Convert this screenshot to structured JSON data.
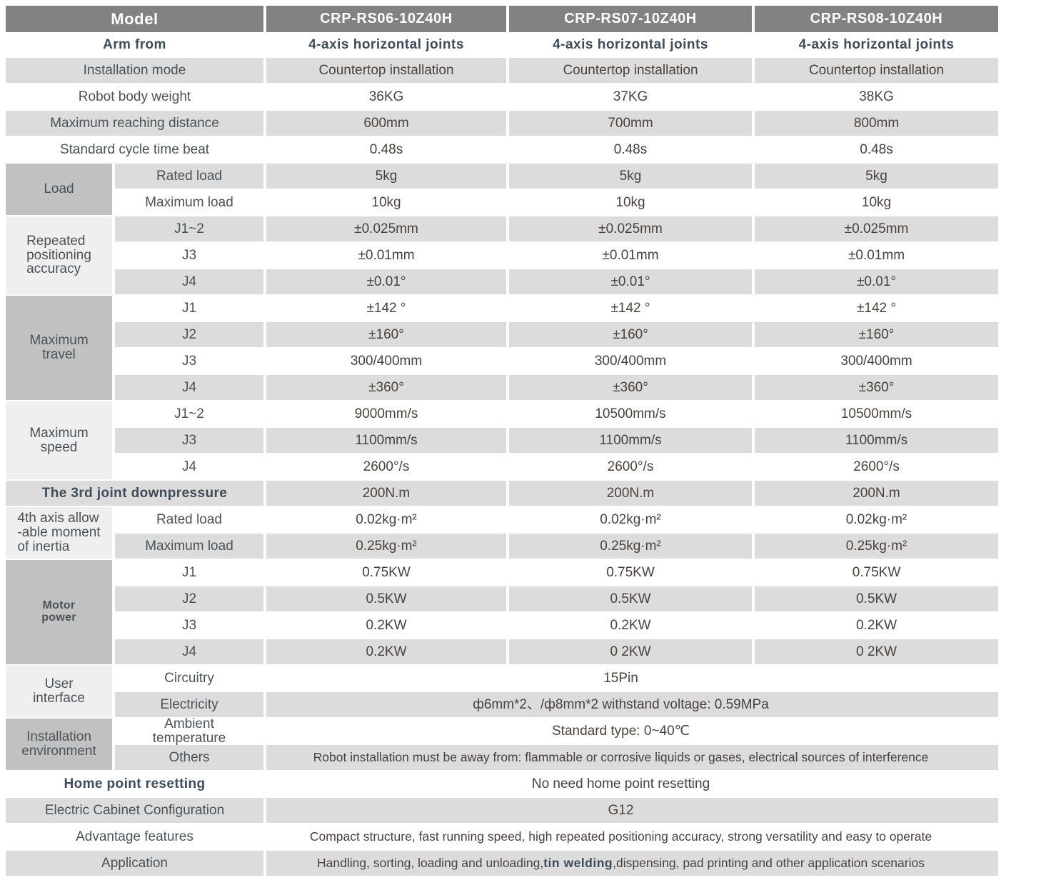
{
  "colors": {
    "header_bg": "#828282",
    "row_band": "#dcdcdc",
    "section_dark": "#c1c1c1",
    "section_light": "#efefef",
    "label_text": "#4b5257",
    "value_text": "#4a423f",
    "accent_text": "#3e4b58"
  },
  "table": {
    "model_label": "Model",
    "models": [
      "CRP-RS06-10Z40H",
      "CRP-RS07-10Z40H",
      "CRP-RS08-10Z40H"
    ],
    "rows": [
      {
        "label": "Arm from",
        "lb": true,
        "vb": true,
        "bg": "white",
        "values": [
          "4-axis horizontal joints",
          "4-axis horizontal joints",
          "4-axis horizontal joints"
        ]
      },
      {
        "label": "Installation mode",
        "bg": "gray",
        "values": [
          "Countertop installation",
          "Countertop installation",
          "Countertop installation"
        ]
      },
      {
        "label": "Robot body weight",
        "bg": "white",
        "values": [
          "36KG",
          "37KG",
          "38KG"
        ]
      },
      {
        "label": "Maximum reaching distance",
        "bg": "gray",
        "values": [
          "600mm",
          "700mm",
          "800mm"
        ]
      },
      {
        "label": "Standard cycle time beat",
        "bg": "white",
        "values": [
          "0.48s",
          "0.48s",
          "0.48s"
        ]
      },
      {
        "section": {
          "label": "Load",
          "tone": "dark",
          "span": 2
        },
        "sub": "Rated load",
        "bg": "gray",
        "values": [
          "5kg",
          "5kg",
          "5kg"
        ]
      },
      {
        "sub": "Maximum load",
        "bg": "white",
        "values": [
          "10kg",
          "10kg",
          "10kg"
        ]
      },
      {
        "section": {
          "label": "Repeated\npositioning\naccuracy",
          "tone": "light",
          "span": 3,
          "align": "left"
        },
        "sub": "J1~2",
        "bg": "gray",
        "values": [
          "±0.025mm",
          "±0.025mm",
          "±0.025mm"
        ]
      },
      {
        "sub": "J3",
        "bg": "white",
        "values": [
          "±0.01mm",
          "±0.01mm",
          "±0.01mm"
        ]
      },
      {
        "sub": "J4",
        "bg": "gray",
        "values": [
          "±0.01°",
          "±0.01°",
          "±0.01°"
        ]
      },
      {
        "section": {
          "label": "Maximum\ntravel",
          "tone": "dark",
          "span": 4
        },
        "sub": "J1",
        "bg": "white",
        "values": [
          "±142 °",
          "±142 °",
          "±142 °"
        ]
      },
      {
        "sub": "J2",
        "bg": "gray",
        "values": [
          "±160°",
          "±160°",
          "±160°"
        ]
      },
      {
        "sub": "J3",
        "bg": "white",
        "values": [
          "300/400mm",
          "300/400mm",
          "300/400mm"
        ]
      },
      {
        "sub": "J4",
        "bg": "gray",
        "values": [
          "±360°",
          "±360°",
          "±360°"
        ]
      },
      {
        "section": {
          "label": "Maximum\nspeed",
          "tone": "light",
          "span": 3
        },
        "sub": "J1~2",
        "bg": "white",
        "values": [
          "9000mm/s",
          "10500mm/s",
          "10500mm/s"
        ]
      },
      {
        "sub": "J3",
        "bg": "gray",
        "values": [
          "1100mm/s",
          "1100mm/s",
          "1100mm/s"
        ]
      },
      {
        "sub": "J4",
        "bg": "white",
        "values": [
          "2600°/s",
          "2600°/s",
          "2600°/s"
        ]
      },
      {
        "label": "The 3rd joint downpressure",
        "lb": true,
        "bg": "gray",
        "values": [
          "200N.m",
          "200N.m",
          "200N.m"
        ]
      },
      {
        "section": {
          "label": "4th axis allow\n-able moment\nof inertia",
          "tone": "light",
          "span": 2,
          "align": "left"
        },
        "sub": "Rated load",
        "bg": "white",
        "values": [
          "0.02kg·m²",
          "0.02kg·m²",
          "0.02kg·m²"
        ]
      },
      {
        "sub": "Maximum load",
        "bg": "gray",
        "values": [
          "0.25kg·m²",
          "0.25kg·m²",
          "0.25kg·m²"
        ]
      },
      {
        "section": {
          "label": "Motor\npower",
          "tone": "dark",
          "span": 4,
          "bold": true
        },
        "sub": "J1",
        "bg": "white",
        "values": [
          "0.75KW",
          "0.75KW",
          "0.75KW"
        ]
      },
      {
        "sub": "J2",
        "bg": "gray",
        "values": [
          "0.5KW",
          "0.5KW",
          "0.5KW"
        ]
      },
      {
        "sub": "J3",
        "bg": "white",
        "values": [
          "0.2KW",
          "0.2KW",
          "0.2KW"
        ]
      },
      {
        "sub": "J4",
        "bg": "gray",
        "values": [
          "0.2KW",
          "0 2KW",
          "0 2KW"
        ]
      },
      {
        "section": {
          "label": "User\ninterface",
          "tone": "light",
          "span": 2
        },
        "sub": "Circuitry",
        "bg": "white",
        "value": "15Pin"
      },
      {
        "sub": "Electricity",
        "bg": "gray",
        "value": "ф6mm*2、/ф8mm*2  withstand voltage: 0.59MPa"
      },
      {
        "section": {
          "label": "Installation\nenvironment",
          "tone": "dark",
          "span": 2
        },
        "sub": "Ambient\ntemperature",
        "bg": "white",
        "value": "Standard type:   0~40℃"
      },
      {
        "sub": "Others",
        "bg": "gray",
        "small": true,
        "value": "Robot installation must be away from: flammable or corrosive liquids or gases, electrical sources of interference"
      },
      {
        "label": "Home point resetting",
        "lb": true,
        "bg": "white",
        "value": "No need home point resetting"
      },
      {
        "label": "Electric Cabinet Configuration",
        "bg": "gray",
        "value": "G12"
      },
      {
        "label": "Advantage features",
        "bg": "white",
        "small": true,
        "value": "Compact structure, fast running speed, high repeated positioning accuracy, strong versatility and easy to operate"
      },
      {
        "label": "Application",
        "bg": "gray",
        "small": true,
        "value_rich": [
          {
            "t": "Handling, sorting, loading and unloading,",
            "b": false
          },
          {
            "t": "tin welding",
            "b": true
          },
          {
            "t": ",dispensing, pad printing and other application scenarios",
            "b": false
          }
        ]
      }
    ]
  }
}
